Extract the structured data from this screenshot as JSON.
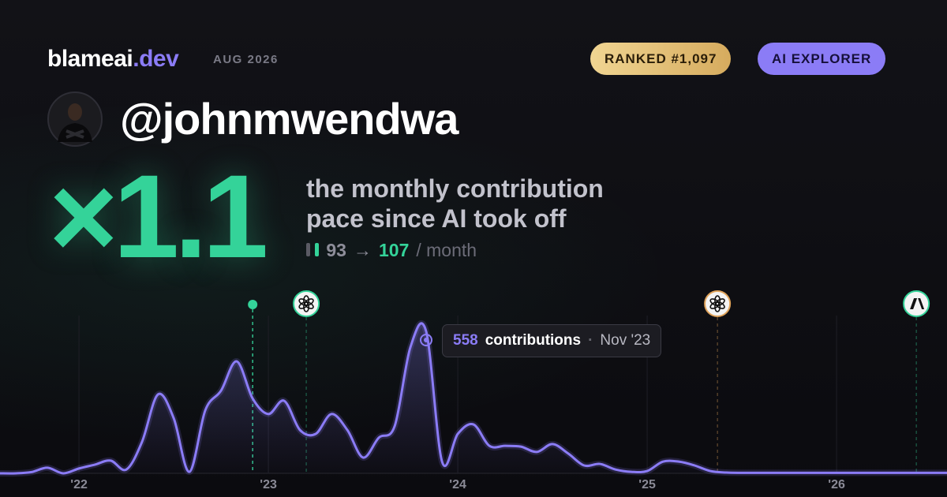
{
  "header": {
    "brand": "blameai",
    "brand_suffix": ".dev",
    "date": "AUG 2026",
    "rank": "RANKED #1,097",
    "tier": "AI EXPLORER",
    "username": "@johnmwendwa"
  },
  "headline": {
    "multiplier": "×1.1",
    "description": "the monthly contribution pace since AI took off",
    "before": 93,
    "arrow": "→",
    "after": 107,
    "unit": "/ month"
  },
  "tooltip": {
    "label": "contributions",
    "separator": "·",
    "date": "Nov '23"
  },
  "chart_data": {
    "type": "line",
    "x": [
      2021.583,
      2021.667,
      2021.75,
      2021.833,
      2021.917,
      2022,
      2022.083,
      2022.167,
      2022.25,
      2022.333,
      2022.417,
      2022.5,
      2022.583,
      2022.667,
      2022.75,
      2022.833,
      2022.917,
      2023,
      2023.083,
      2023.167,
      2023.25,
      2023.333,
      2023.417,
      2023.5,
      2023.583,
      2023.667,
      2023.75,
      2023.833,
      2023.917,
      2024,
      2024.083,
      2024.167,
      2024.25,
      2024.333,
      2024.417,
      2024.5,
      2024.583,
      2024.667,
      2024.75,
      2024.833,
      2024.917,
      2025,
      2025.083,
      2025.167,
      2025.25,
      2025.333,
      2025.417,
      2025.5,
      2025.583,
      2025.667,
      2025.75,
      2025.833,
      2025.917,
      2026,
      2026.083,
      2026.167,
      2026.25,
      2026.333,
      2026.417,
      2026.5,
      2026.583
    ],
    "series": [
      {
        "name": "contributions",
        "color": "#8b7cf6",
        "values": [
          0,
          0,
          5,
          22,
          0,
          19,
          34,
          50,
          15,
          124,
          310,
          217,
          6,
          248,
          325,
          440,
          294,
          233,
          285,
          170,
          155,
          233,
          170,
          62,
          140,
          186,
          496,
          558,
          46,
          155,
          192,
          108,
          108,
          105,
          84,
          115,
          78,
          31,
          37,
          15,
          6,
          9,
          46,
          46,
          31,
          9,
          3,
          2,
          2,
          2,
          2,
          2,
          2,
          2,
          2,
          2,
          2,
          2,
          2,
          2,
          2
        ]
      }
    ],
    "xlim": [
      2021.583,
      2026.583
    ],
    "ylim": [
      0,
      620
    ],
    "xticks": [
      {
        "value": 2022,
        "label": "'22"
      },
      {
        "value": 2023,
        "label": "'23"
      },
      {
        "value": 2024,
        "label": "'24"
      },
      {
        "value": 2025,
        "label": "'25"
      },
      {
        "value": 2026,
        "label": "'26"
      }
    ],
    "events": [
      {
        "x": 2022.917,
        "kind": "dot",
        "color": "#34d399"
      },
      {
        "x": 2023.2,
        "kind": "openai",
        "color": "#34d399"
      },
      {
        "x": 2025.371,
        "kind": "openai",
        "color": "#e0a35a"
      },
      {
        "x": 2026.421,
        "kind": "anthropic",
        "color": "#34d399"
      }
    ],
    "highlight": 27,
    "grid": true
  }
}
